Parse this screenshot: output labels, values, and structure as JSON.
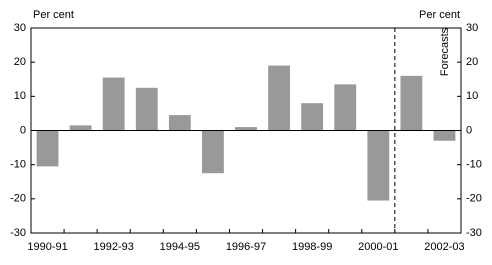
{
  "chart_data": {
    "type": "bar",
    "y_label": "Per cent",
    "y2_label": "Per cent",
    "annotation": "Forecasts",
    "categories": [
      "1990-91",
      null,
      "1992-93",
      null,
      "1994-95",
      null,
      "1996-97",
      null,
      "1998-99",
      null,
      "2000-01",
      null,
      "2002-03"
    ],
    "values": [
      -10.5,
      1.5,
      15.5,
      12.5,
      4.5,
      -12.5,
      1,
      19,
      8,
      13.5,
      -20.5,
      16,
      -3
    ],
    "color": "#999999",
    "ylim": [
      -30,
      30
    ],
    "yticks": [
      30,
      20,
      10,
      0,
      -10,
      -20,
      -30
    ],
    "y2lim": [
      -30,
      30
    ],
    "y2ticks": [
      30,
      20,
      10,
      0,
      -10,
      -20,
      -30
    ]
  }
}
